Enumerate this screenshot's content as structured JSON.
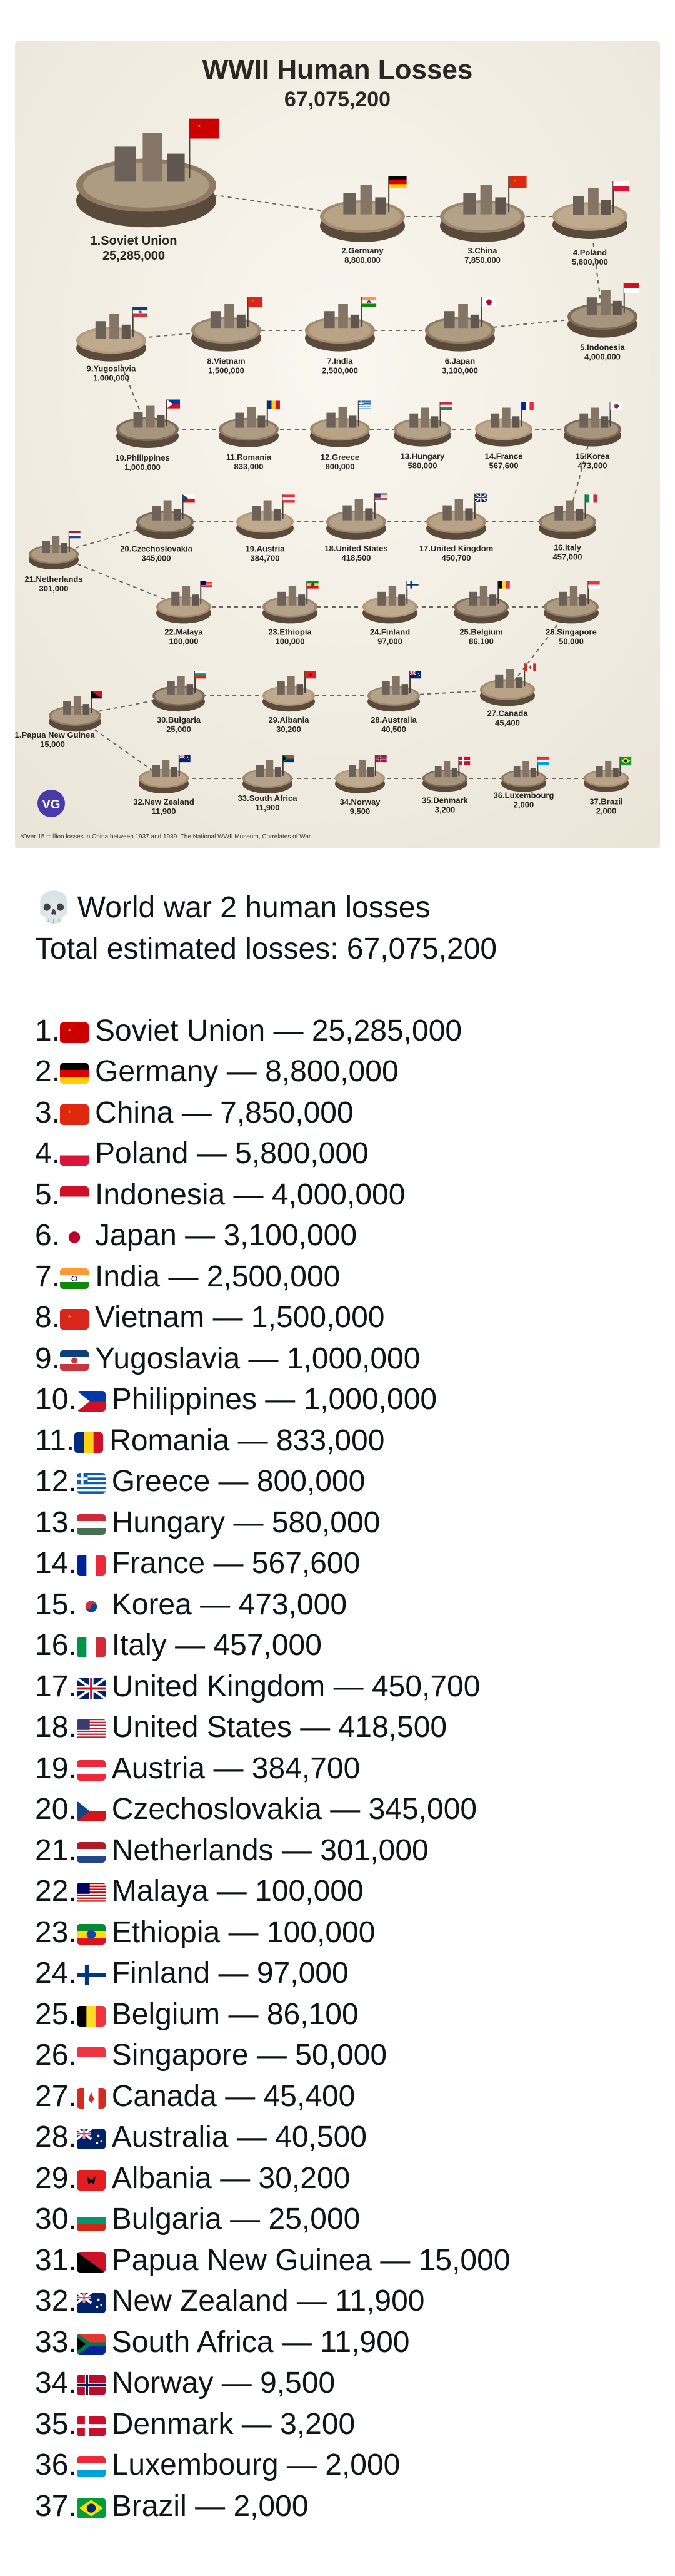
{
  "infographic": {
    "title": "WWII Human Losses",
    "total": "67,075,200",
    "footnote": "*Over 15 million losses in China between 1937 and 1939. The National WWII Museum, Correlates of War.",
    "logo_text": "VG"
  },
  "post": {
    "skull_icon": "💀",
    "heading": "World war 2 human losses",
    "total_line": "Total estimated losses: 67,075,200"
  },
  "chart_data": {
    "type": "table",
    "title": "WWII Human Losses",
    "total": 67075200,
    "rows": [
      {
        "rank": 1,
        "country": "Soviet Union",
        "losses": 25285000,
        "losses_text": "25,285,000",
        "flag": [
          "#cc0000"
        ]
      },
      {
        "rank": 2,
        "country": "Germany",
        "losses": 8800000,
        "losses_text": "8,800,000",
        "flag": [
          "#000000",
          "#dd0000",
          "#ffce00"
        ]
      },
      {
        "rank": 3,
        "country": "China",
        "losses": 7850000,
        "losses_text": "7,850,000",
        "flag": [
          "#de2910"
        ]
      },
      {
        "rank": 4,
        "country": "Poland",
        "losses": 5800000,
        "losses_text": "5,800,000",
        "flag": [
          "#ffffff",
          "#dc143c"
        ]
      },
      {
        "rank": 5,
        "country": "Indonesia",
        "losses": 4000000,
        "losses_text": "4,000,000",
        "flag": [
          "#ce1126",
          "#ffffff"
        ]
      },
      {
        "rank": 6,
        "country": "Japan",
        "losses": 3100000,
        "losses_text": "3,100,000",
        "flag": [
          "#ffffff",
          "#bc002d"
        ]
      },
      {
        "rank": 7,
        "country": "India",
        "losses": 2500000,
        "losses_text": "2,500,000",
        "flag": [
          "#ff9933",
          "#ffffff",
          "#138808"
        ]
      },
      {
        "rank": 8,
        "country": "Vietnam",
        "losses": 1500000,
        "losses_text": "1,500,000",
        "flag": [
          "#da251d"
        ]
      },
      {
        "rank": 9,
        "country": "Yugoslavia",
        "losses": 1000000,
        "losses_text": "1,000,000",
        "flag": [
          "#0c4076",
          "#ffffff",
          "#c6363c"
        ]
      },
      {
        "rank": 10,
        "country": "Philippines",
        "losses": 1000000,
        "losses_text": "1,000,000",
        "flag": [
          "#0038a8",
          "#ce1126",
          "#ffffff"
        ]
      },
      {
        "rank": 11,
        "country": "Romania",
        "losses": 833000,
        "losses_text": "833,000",
        "flag": [
          "#002b7f",
          "#fcd116",
          "#ce1126"
        ]
      },
      {
        "rank": 12,
        "country": "Greece",
        "losses": 800000,
        "losses_text": "800,000",
        "flag": [
          "#0d5eaf",
          "#ffffff"
        ]
      },
      {
        "rank": 13,
        "country": "Hungary",
        "losses": 580000,
        "losses_text": "580,000",
        "flag": [
          "#ce2939",
          "#ffffff",
          "#477050"
        ]
      },
      {
        "rank": 14,
        "country": "France",
        "losses": 567600,
        "losses_text": "567,600",
        "flag": [
          "#002395",
          "#ffffff",
          "#ed2939"
        ]
      },
      {
        "rank": 15,
        "country": "Korea",
        "losses": 473000,
        "losses_text": "473,000",
        "flag": [
          "#ffffff",
          "#cd2e3a",
          "#0047a0"
        ]
      },
      {
        "rank": 16,
        "country": "Italy",
        "losses": 457000,
        "losses_text": "457,000",
        "flag": [
          "#009246",
          "#ffffff",
          "#ce2b37"
        ]
      },
      {
        "rank": 17,
        "country": "United Kingdom",
        "losses": 450700,
        "losses_text": "450,700",
        "flag": [
          "#012169",
          "#ffffff",
          "#c8102e"
        ]
      },
      {
        "rank": 18,
        "country": "United States",
        "losses": 418500,
        "losses_text": "418,500",
        "flag": [
          "#b22234",
          "#ffffff",
          "#3c3b6e"
        ]
      },
      {
        "rank": 19,
        "country": "Austria",
        "losses": 384700,
        "losses_text": "384,700",
        "flag": [
          "#ed2939",
          "#ffffff",
          "#ed2939"
        ]
      },
      {
        "rank": 20,
        "country": "Czechoslovakia",
        "losses": 345000,
        "losses_text": "345,000",
        "flag": [
          "#ffffff",
          "#d7141a",
          "#11457e"
        ]
      },
      {
        "rank": 21,
        "country": "Netherlands",
        "losses": 301000,
        "losses_text": "301,000",
        "flag": [
          "#ae1c28",
          "#ffffff",
          "#21468b"
        ]
      },
      {
        "rank": 22,
        "country": "Malaya",
        "losses": 100000,
        "losses_text": "100,000",
        "flag": [
          "#cc0001",
          "#ffffff",
          "#010066"
        ]
      },
      {
        "rank": 23,
        "country": "Ethiopia",
        "losses": 100000,
        "losses_text": "100,000",
        "flag": [
          "#078930",
          "#fcdd09",
          "#da121a"
        ]
      },
      {
        "rank": 24,
        "country": "Finland",
        "losses": 97000,
        "losses_text": "97,000",
        "flag": [
          "#ffffff",
          "#003580"
        ]
      },
      {
        "rank": 25,
        "country": "Belgium",
        "losses": 86100,
        "losses_text": "86,100",
        "flag": [
          "#000000",
          "#fdda24",
          "#ef3340"
        ]
      },
      {
        "rank": 26,
        "country": "Singapore",
        "losses": 50000,
        "losses_text": "50,000",
        "flag": [
          "#ef3340",
          "#ffffff"
        ]
      },
      {
        "rank": 27,
        "country": "Canada",
        "losses": 45400,
        "losses_text": "45,400",
        "flag": [
          "#d52b1e",
          "#ffffff",
          "#d52b1e"
        ]
      },
      {
        "rank": 28,
        "country": "Australia",
        "losses": 40500,
        "losses_text": "40,500",
        "flag": [
          "#012169",
          "#ffffff",
          "#e4002b"
        ]
      },
      {
        "rank": 29,
        "country": "Albania",
        "losses": 30200,
        "losses_text": "30,200",
        "flag": [
          "#e41e20",
          "#000000"
        ]
      },
      {
        "rank": 30,
        "country": "Bulgaria",
        "losses": 25000,
        "losses_text": "25,000",
        "flag": [
          "#ffffff",
          "#00966e",
          "#d62612"
        ]
      },
      {
        "rank": 31,
        "country": "Papua New Guinea",
        "losses": 15000,
        "losses_text": "15,000",
        "flag": [
          "#000000",
          "#ce1126",
          "#fcd116"
        ]
      },
      {
        "rank": 32,
        "country": "New Zealand",
        "losses": 11900,
        "losses_text": "11,900",
        "flag": [
          "#012169",
          "#ffffff",
          "#c8102e"
        ]
      },
      {
        "rank": 33,
        "country": "South Africa",
        "losses": 11900,
        "losses_text": "11,900",
        "flag": [
          "#007a4d",
          "#ffb612",
          "#de3831"
        ]
      },
      {
        "rank": 34,
        "country": "Norway",
        "losses": 9500,
        "losses_text": "9,500",
        "flag": [
          "#ba0c2f",
          "#ffffff",
          "#00205b"
        ]
      },
      {
        "rank": 35,
        "country": "Denmark",
        "losses": 3200,
        "losses_text": "3,200",
        "flag": [
          "#c8102e",
          "#ffffff"
        ]
      },
      {
        "rank": 36,
        "country": "Luxembourg",
        "losses": 2000,
        "losses_text": "2,000",
        "flag": [
          "#ed2939",
          "#ffffff",
          "#00a1de"
        ]
      },
      {
        "rank": 37,
        "country": "Brazil",
        "losses": 2000,
        "losses_text": "2,000",
        "flag": [
          "#009c3b",
          "#ffdf00",
          "#002776"
        ]
      }
    ]
  }
}
